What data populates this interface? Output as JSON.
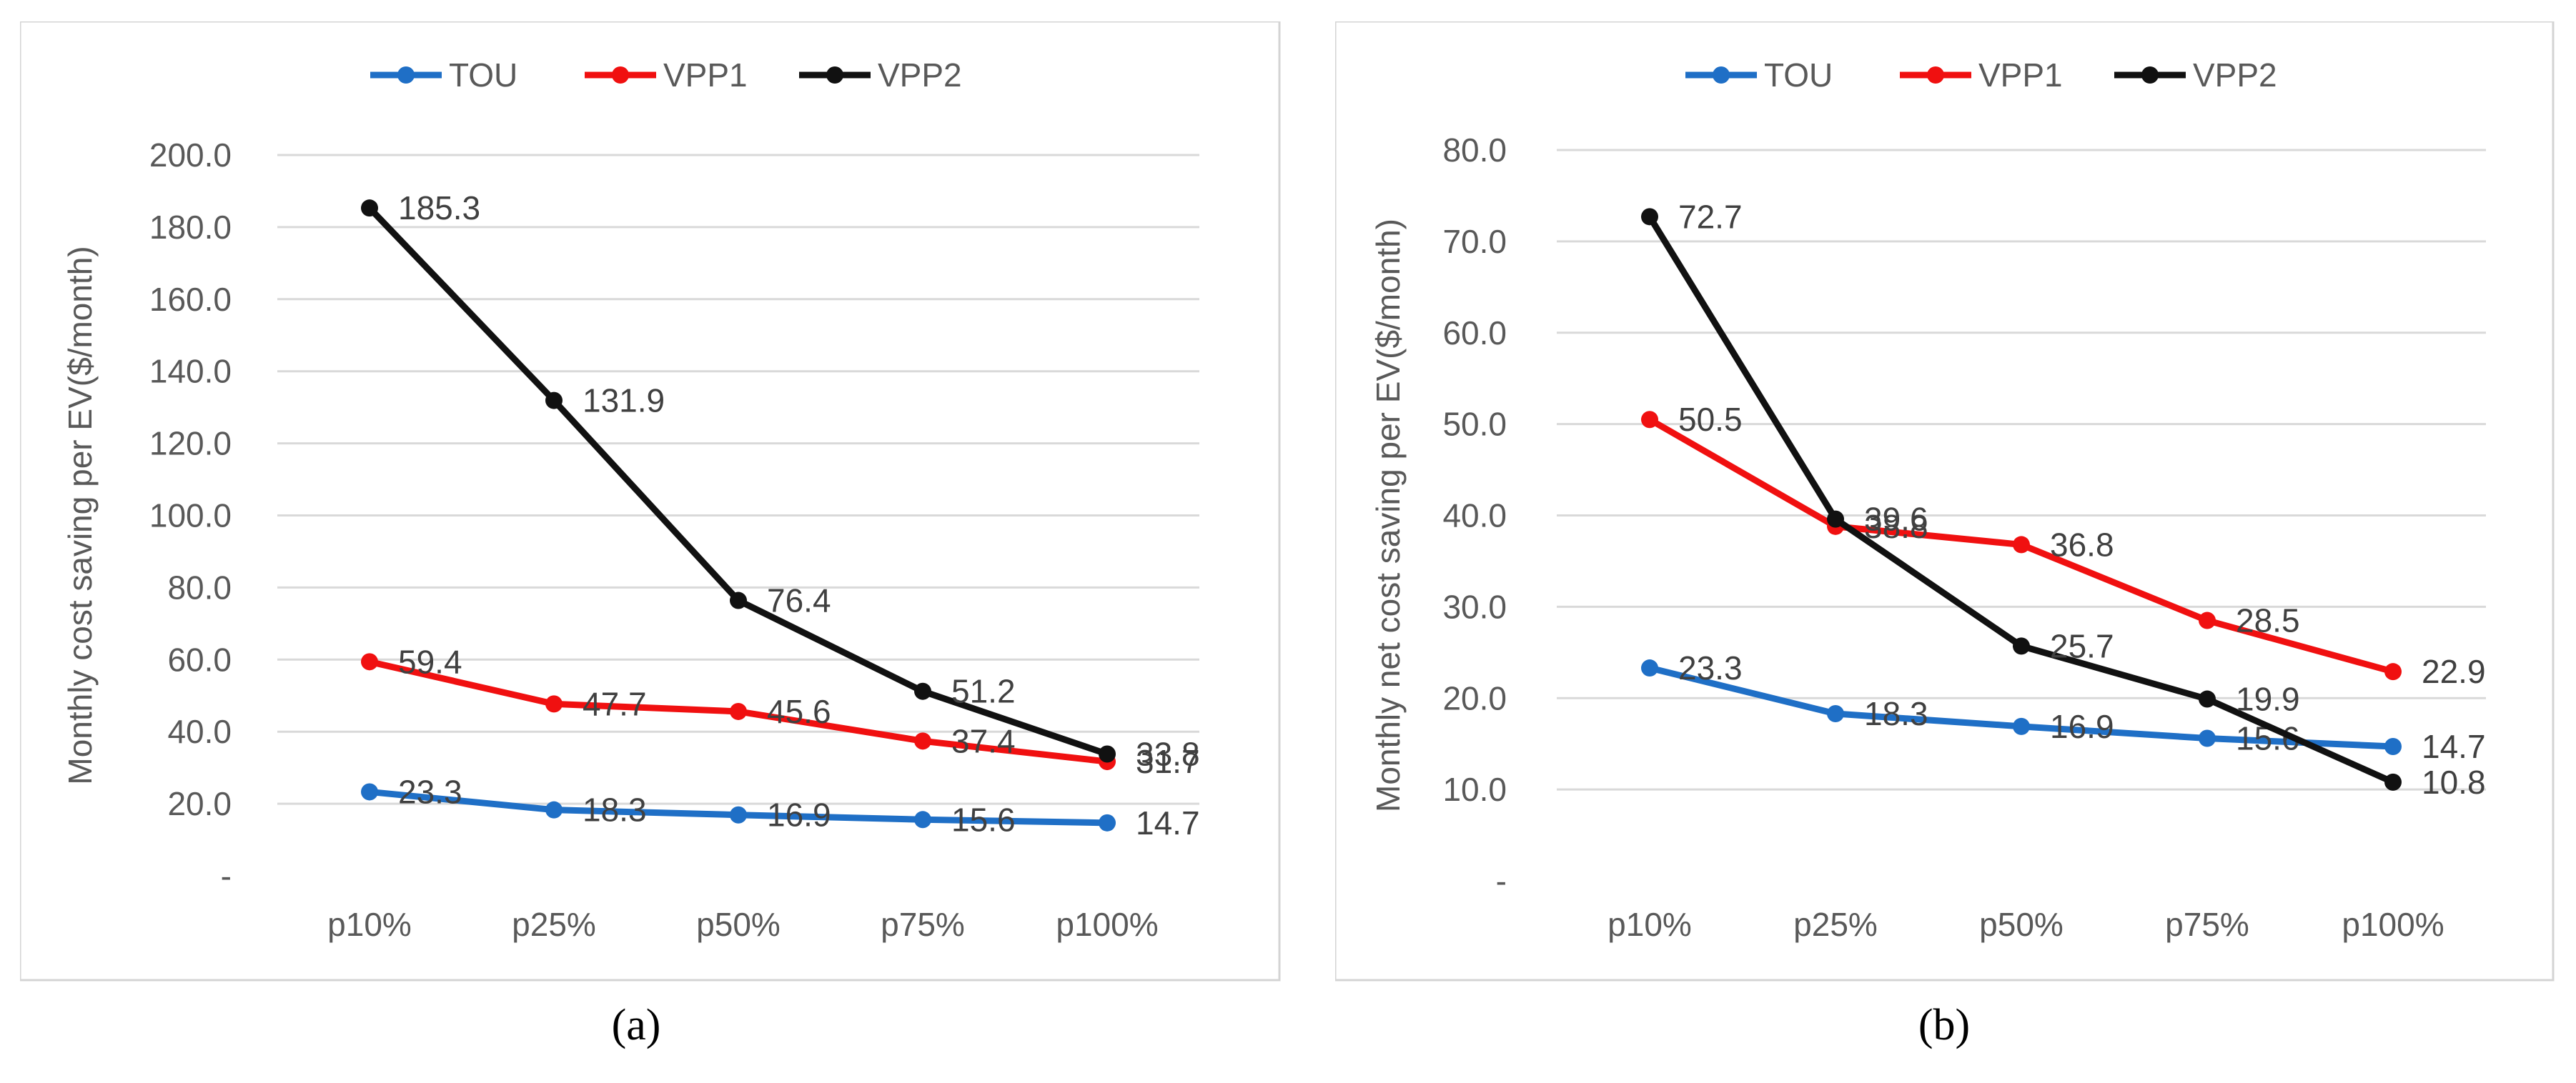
{
  "chart_data": [
    {
      "type": "line",
      "panel_label": "a",
      "title": "",
      "xlabel": "",
      "ylabel": "Monthly cost saving per EV($/month)",
      "categories": [
        "p10%",
        "p25%",
        "p50%",
        "p75%",
        "p100%"
      ],
      "ylim": [
        0,
        200
      ],
      "y_ticks": [
        "-",
        "20.0",
        "40.0",
        "60.0",
        "80.0",
        "100.0",
        "120.0",
        "140.0",
        "160.0",
        "180.0",
        "200.0"
      ],
      "legend_position": "top",
      "grid": true,
      "series": [
        {
          "name": "TOU",
          "color": "#1f6fc6",
          "values": [
            23.3,
            18.3,
            16.9,
            15.6,
            14.7
          ],
          "labels": [
            "23.3",
            "18.3",
            "16.9",
            "15.6",
            "14.7"
          ]
        },
        {
          "name": "VPP1",
          "color": "#f01010",
          "values": [
            59.4,
            47.7,
            45.6,
            37.4,
            31.7
          ],
          "labels": [
            "59.4",
            "47.7",
            "45.6",
            "37.4",
            "31.7"
          ]
        },
        {
          "name": "VPP2",
          "color": "#111111",
          "values": [
            185.3,
            131.9,
            76.4,
            51.2,
            33.8
          ],
          "labels": [
            "185.3",
            "131.9",
            "76.4",
            "51.2",
            "33.8"
          ]
        }
      ]
    },
    {
      "type": "line",
      "panel_label": "b",
      "title": "",
      "xlabel": "",
      "ylabel": "Monthly net cost saving per EV($/month)",
      "categories": [
        "p10%",
        "p25%",
        "p50%",
        "p75%",
        "p100%"
      ],
      "ylim": [
        0,
        80
      ],
      "y_ticks": [
        "-",
        "10.0",
        "20.0",
        "30.0",
        "40.0",
        "50.0",
        "60.0",
        "70.0",
        "80.0"
      ],
      "legend_position": "top",
      "grid": true,
      "series": [
        {
          "name": "TOU",
          "color": "#1f6fc6",
          "values": [
            23.3,
            18.3,
            16.9,
            15.6,
            14.7
          ],
          "labels": [
            "23.3",
            "18.3",
            "16.9",
            "15.6",
            "14.7"
          ]
        },
        {
          "name": "VPP1",
          "color": "#f01010",
          "values": [
            50.5,
            38.8,
            36.8,
            28.5,
            22.9
          ],
          "labels": [
            "50.5",
            "38.8",
            "36.8",
            "28.5",
            "22.9"
          ]
        },
        {
          "name": "VPP2",
          "color": "#111111",
          "values": [
            72.7,
            39.6,
            25.7,
            19.9,
            10.8
          ],
          "labels": [
            "72.7",
            "39.6",
            "25.7",
            "19.9",
            "10.8"
          ]
        }
      ]
    }
  ],
  "captions": {
    "a": "(a)",
    "b": "(b)"
  }
}
